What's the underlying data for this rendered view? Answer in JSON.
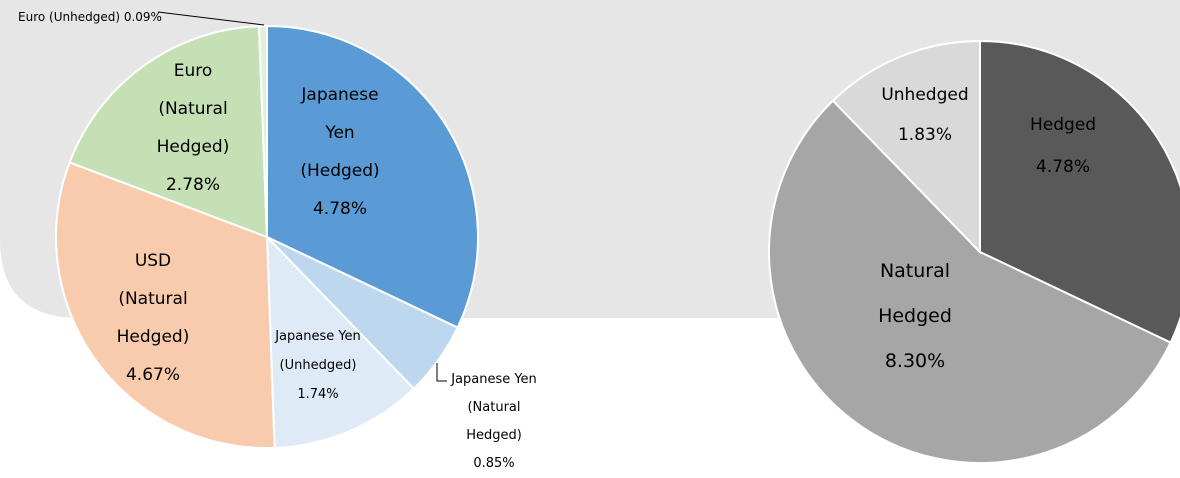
{
  "chart_data": [
    {
      "type": "pie",
      "title": "",
      "slices": [
        {
          "lines": [
            "Japanese",
            "Yen",
            "(Hedged)",
            "4.78%"
          ],
          "value": 4.78,
          "color": "#5b9bd5"
        },
        {
          "lines": [
            "Japanese Yen",
            "(Natural",
            "Hedged)",
            "0.85%"
          ],
          "value": 0.85,
          "color": "#bdd7ee"
        },
        {
          "lines": [
            "Japanese Yen",
            "(Unhedged)",
            "1.74%"
          ],
          "value": 1.74,
          "color": "#deebf7"
        },
        {
          "lines": [
            "USD",
            "(Natural",
            "Hedged)",
            "4.67%"
          ],
          "value": 4.67,
          "color": "#f8cbad"
        },
        {
          "lines": [
            "Euro",
            "(Natural",
            "Hedged)",
            "2.78%"
          ],
          "value": 2.78,
          "color": "#c5e0b4"
        },
        {
          "lines": [
            "Euro (Unhedged) 0.09%"
          ],
          "value": 0.09,
          "color": "#e2f0d9"
        }
      ]
    },
    {
      "type": "pie",
      "title": "",
      "slices": [
        {
          "lines": [
            "Hedged",
            "4.78%"
          ],
          "value": 4.78,
          "color": "#595959"
        },
        {
          "lines": [
            "Natural",
            "Hedged",
            "8.30%"
          ],
          "value": 8.3,
          "color": "#a6a6a6"
        },
        {
          "lines": [
            "Unhedged",
            "1.83%"
          ],
          "value": 1.83,
          "color": "#d9d9d9"
        }
      ]
    }
  ],
  "colors": {
    "background_band": "#e7e6e6",
    "slice_border": "#ffffff",
    "leader_line": "#000000",
    "label_light": "#ffffff"
  }
}
